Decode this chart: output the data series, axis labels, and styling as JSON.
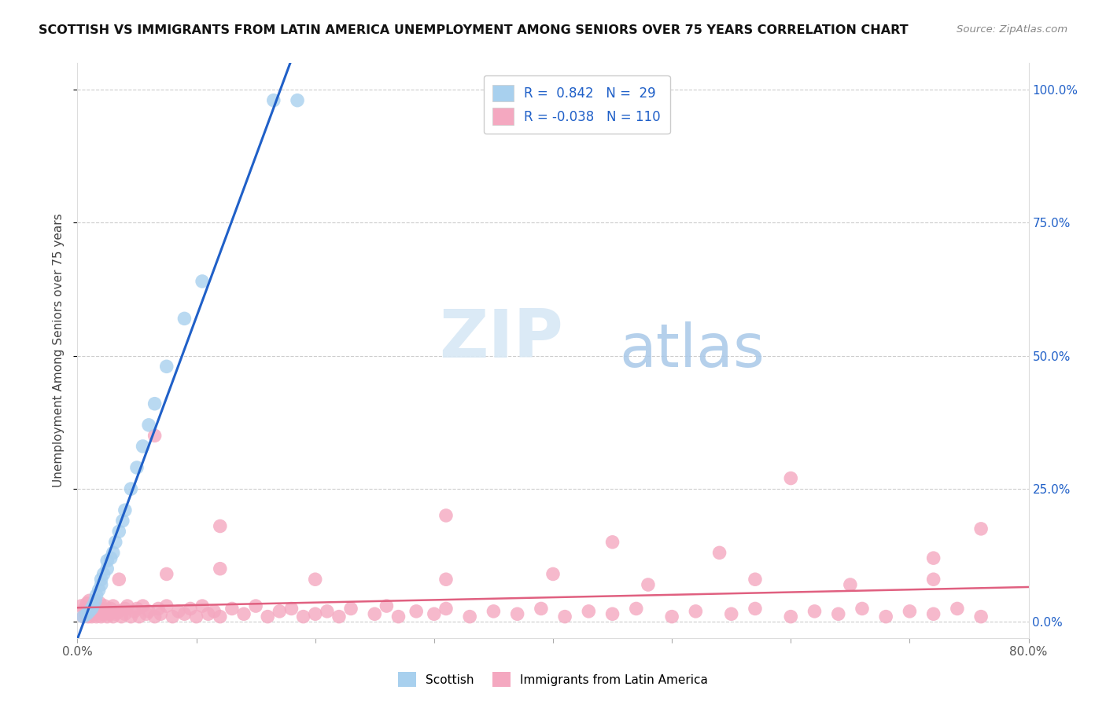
{
  "title": "SCOTTISH VS IMMIGRANTS FROM LATIN AMERICA UNEMPLOYMENT AMONG SENIORS OVER 75 YEARS CORRELATION CHART",
  "source": "Source: ZipAtlas.com",
  "ylabel": "Unemployment Among Seniors over 75 years",
  "xlim": [
    0.0,
    0.8
  ],
  "ylim": [
    -0.03,
    1.05
  ],
  "ytick_positions": [
    0.0,
    0.25,
    0.5,
    0.75,
    1.0
  ],
  "ytick_labels_right": [
    "0.0%",
    "25.0%",
    "50.0%",
    "75.0%",
    "100.0%"
  ],
  "xtick_positions": [
    0.0,
    0.1,
    0.2,
    0.3,
    0.4,
    0.5,
    0.6,
    0.7,
    0.8
  ],
  "xtick_labels": [
    "0.0%",
    "",
    "",
    "",
    "",
    "",
    "",
    "",
    "80.0%"
  ],
  "legend_r_scottish": "0.842",
  "legend_n_scottish": "29",
  "legend_r_latin": "-0.038",
  "legend_n_latin": "110",
  "scottish_color": "#A8D0EE",
  "latin_color": "#F4A8C0",
  "scottish_line_color": "#2060C8",
  "latin_line_color": "#E06080",
  "background_color": "#FFFFFF",
  "grid_color": "#CCCCCC",
  "tick_color": "#AAAAAA",
  "label_color_blue": "#2060C8",
  "watermark_color": "#D5E8F5",
  "scottish_x": [
    0.005,
    0.008,
    0.01,
    0.012,
    0.013,
    0.015,
    0.016,
    0.018,
    0.02,
    0.02,
    0.022,
    0.025,
    0.025,
    0.028,
    0.03,
    0.032,
    0.035,
    0.038,
    0.04,
    0.045,
    0.05,
    0.055,
    0.06,
    0.065,
    0.075,
    0.09,
    0.105,
    0.165,
    0.185
  ],
  "scottish_y": [
    0.01,
    0.015,
    0.02,
    0.025,
    0.03,
    0.04,
    0.05,
    0.06,
    0.07,
    0.08,
    0.09,
    0.1,
    0.115,
    0.12,
    0.13,
    0.15,
    0.17,
    0.19,
    0.21,
    0.25,
    0.29,
    0.33,
    0.37,
    0.41,
    0.48,
    0.57,
    0.64,
    0.98,
    0.98
  ],
  "latin_x": [
    0.003,
    0.005,
    0.006,
    0.007,
    0.008,
    0.008,
    0.009,
    0.01,
    0.01,
    0.011,
    0.012,
    0.012,
    0.013,
    0.015,
    0.015,
    0.016,
    0.018,
    0.019,
    0.02,
    0.02,
    0.022,
    0.023,
    0.025,
    0.025,
    0.027,
    0.028,
    0.03,
    0.03,
    0.032,
    0.035,
    0.037,
    0.04,
    0.04,
    0.042,
    0.045,
    0.048,
    0.05,
    0.052,
    0.055,
    0.058,
    0.06,
    0.065,
    0.068,
    0.07,
    0.075,
    0.08,
    0.085,
    0.09,
    0.095,
    0.1,
    0.105,
    0.11,
    0.115,
    0.12,
    0.13,
    0.14,
    0.15,
    0.16,
    0.17,
    0.18,
    0.19,
    0.2,
    0.21,
    0.22,
    0.23,
    0.25,
    0.26,
    0.27,
    0.285,
    0.3,
    0.31,
    0.33,
    0.35,
    0.37,
    0.39,
    0.41,
    0.43,
    0.45,
    0.47,
    0.5,
    0.52,
    0.55,
    0.57,
    0.6,
    0.62,
    0.64,
    0.66,
    0.68,
    0.7,
    0.72,
    0.74,
    0.76,
    0.065,
    0.12,
    0.31,
    0.45,
    0.54,
    0.6,
    0.72,
    0.76,
    0.035,
    0.075,
    0.12,
    0.2,
    0.31,
    0.4,
    0.48,
    0.57,
    0.65,
    0.72
  ],
  "latin_y": [
    0.03,
    0.01,
    0.025,
    0.015,
    0.02,
    0.035,
    0.01,
    0.02,
    0.04,
    0.015,
    0.025,
    0.01,
    0.03,
    0.015,
    0.025,
    0.01,
    0.02,
    0.035,
    0.01,
    0.025,
    0.015,
    0.03,
    0.01,
    0.02,
    0.015,
    0.025,
    0.01,
    0.03,
    0.015,
    0.02,
    0.01,
    0.025,
    0.015,
    0.03,
    0.01,
    0.02,
    0.025,
    0.01,
    0.03,
    0.015,
    0.02,
    0.01,
    0.025,
    0.015,
    0.03,
    0.01,
    0.02,
    0.015,
    0.025,
    0.01,
    0.03,
    0.015,
    0.02,
    0.01,
    0.025,
    0.015,
    0.03,
    0.01,
    0.02,
    0.025,
    0.01,
    0.015,
    0.02,
    0.01,
    0.025,
    0.015,
    0.03,
    0.01,
    0.02,
    0.015,
    0.025,
    0.01,
    0.02,
    0.015,
    0.025,
    0.01,
    0.02,
    0.015,
    0.025,
    0.01,
    0.02,
    0.015,
    0.025,
    0.01,
    0.02,
    0.015,
    0.025,
    0.01,
    0.02,
    0.015,
    0.025,
    0.01,
    0.35,
    0.18,
    0.2,
    0.15,
    0.13,
    0.27,
    0.12,
    0.175,
    0.08,
    0.09,
    0.1,
    0.08,
    0.08,
    0.09,
    0.07,
    0.08,
    0.07,
    0.08
  ]
}
